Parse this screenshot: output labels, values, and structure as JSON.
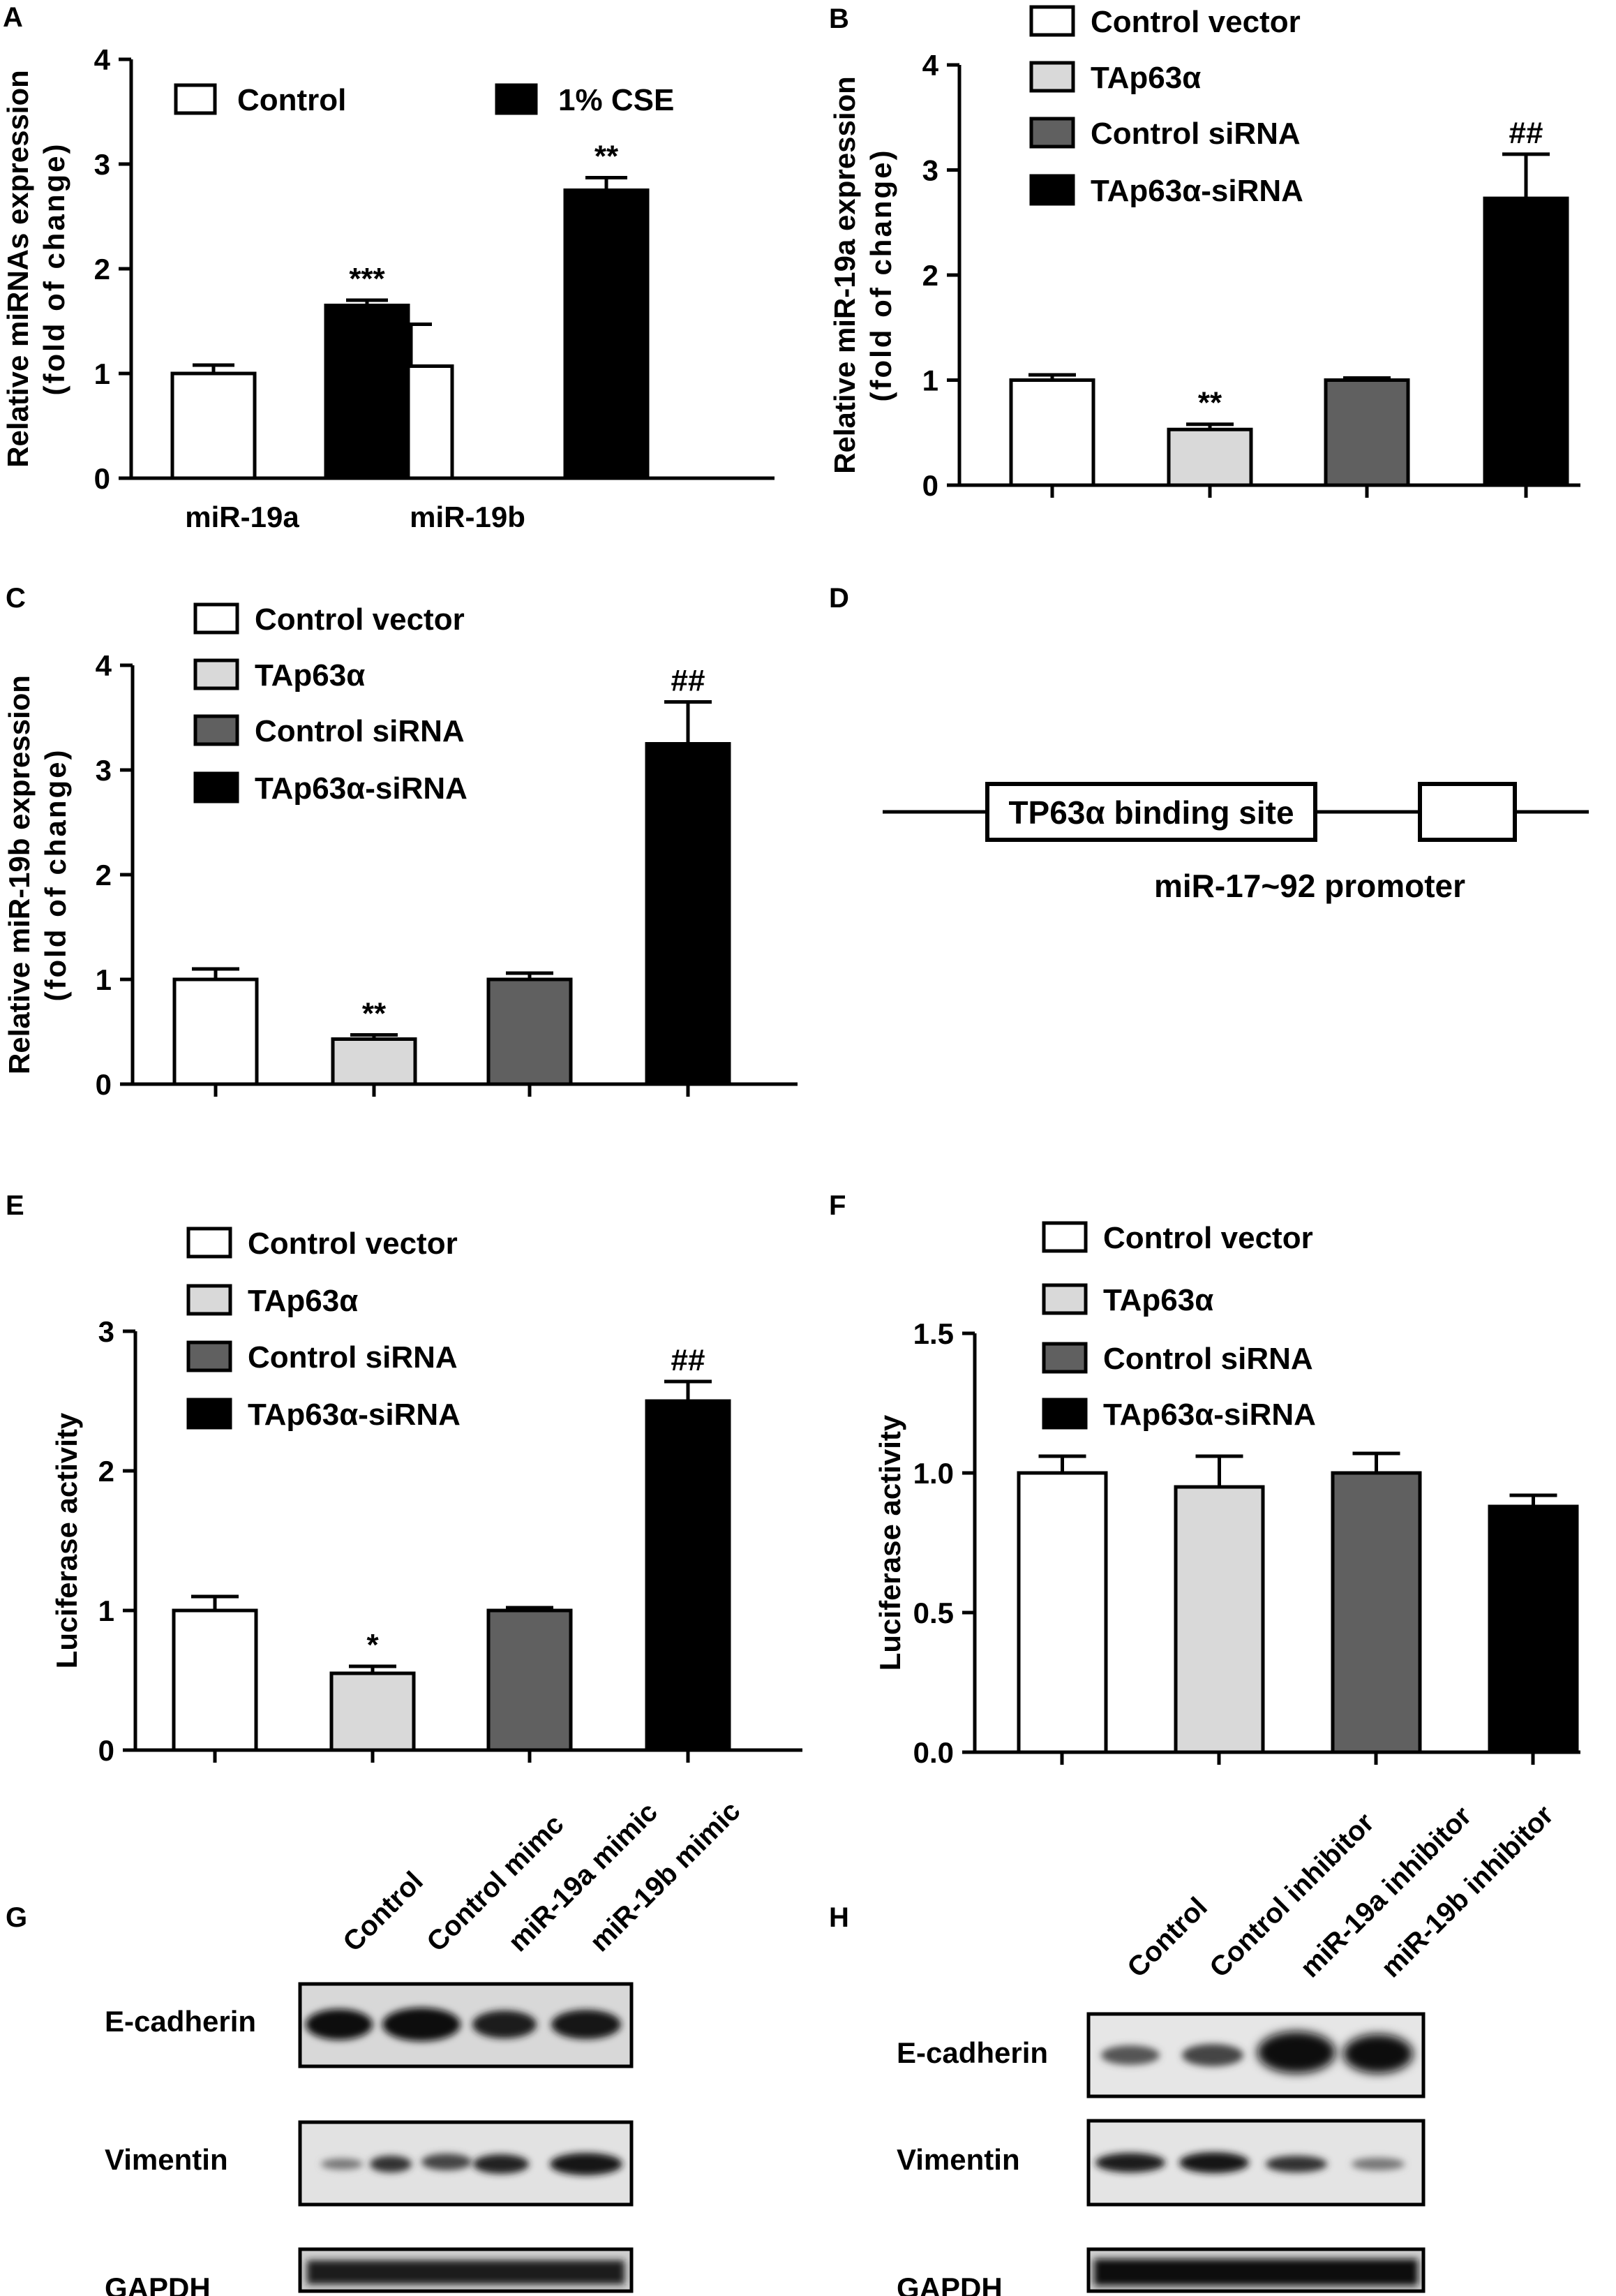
{
  "chart_data": [
    {
      "panel": "A",
      "type": "bar",
      "categories": [
        "miR-19a",
        "miR-19b"
      ],
      "series": [
        {
          "name": "Control",
          "color": "#ffffff",
          "values": [
            1.0,
            1.07
          ],
          "errors": [
            0.08,
            0.4
          ],
          "labels": [
            "",
            ""
          ]
        },
        {
          "name": "1% CSE",
          "color": "#000000",
          "values": [
            1.65,
            2.75
          ],
          "errors": [
            0.05,
            0.12
          ],
          "labels": [
            "***",
            "**"
          ]
        }
      ],
      "ylabel": "Relative miRNAs expression\n(fold of change)",
      "ylim": [
        0,
        4
      ],
      "yticks": [
        "0",
        "1",
        "2",
        "3",
        "4"
      ],
      "legend": "top"
    },
    {
      "panel": "B",
      "type": "bar",
      "categories": [
        "Control vector",
        "TAp63α",
        "Control siRNA",
        "TAp63α-siRNA"
      ],
      "colors": [
        "#ffffff",
        "#d9d9d9",
        "#606060",
        "#000000"
      ],
      "values": [
        1.0,
        0.53,
        1.0,
        2.73
      ],
      "errors": [
        0.05,
        0.05,
        0.02,
        0.42
      ],
      "labels": [
        "",
        "**",
        "",
        "##"
      ],
      "ylabel": "Relative miR-19a expression\n(fold of change)",
      "ylim": [
        0,
        4
      ],
      "yticks": [
        "0",
        "1",
        "2",
        "3",
        "4"
      ],
      "legend": "top-right"
    },
    {
      "panel": "C",
      "type": "bar",
      "categories": [
        "Control vector",
        "TAp63α",
        "Control siRNA",
        "TAp63α-siRNA"
      ],
      "colors": [
        "#ffffff",
        "#d9d9d9",
        "#606060",
        "#000000"
      ],
      "values": [
        1.0,
        0.43,
        1.0,
        3.25
      ],
      "errors": [
        0.1,
        0.04,
        0.06,
        0.4
      ],
      "labels": [
        "",
        "**",
        "",
        "##"
      ],
      "ylabel": "Relative miR-19b expression\n(fold of change)",
      "ylim": [
        0,
        4
      ],
      "yticks": [
        "0",
        "1",
        "2",
        "3",
        "4"
      ],
      "legend": "top"
    },
    {
      "panel": "E",
      "type": "bar",
      "categories": [
        "Control vector",
        "TAp63α",
        "Control siRNA",
        "TAp63α-siRNA"
      ],
      "colors": [
        "#ffffff",
        "#d9d9d9",
        "#606060",
        "#000000"
      ],
      "values": [
        1.0,
        0.55,
        1.0,
        2.5
      ],
      "errors": [
        0.1,
        0.05,
        0.02,
        0.14
      ],
      "labels": [
        "",
        "*",
        "",
        "##"
      ],
      "ylabel": "Luciferase activity",
      "ylim": [
        0,
        3
      ],
      "yticks": [
        "0",
        "1",
        "2",
        "3"
      ],
      "legend": "top"
    },
    {
      "panel": "F",
      "type": "bar",
      "categories": [
        "Control vector",
        "TAp63α",
        "Control siRNA",
        "TAp63α-siRNA"
      ],
      "colors": [
        "#ffffff",
        "#d9d9d9",
        "#606060",
        "#000000"
      ],
      "values": [
        1.0,
        0.95,
        1.0,
        0.88
      ],
      "errors": [
        0.06,
        0.11,
        0.07,
        0.04
      ],
      "labels": [
        "",
        "",
        "",
        ""
      ],
      "ylabel": "Luciferase activity",
      "ylim": [
        0,
        1.5
      ],
      "yticks": [
        "0.0",
        "0.5",
        "1.0",
        "1.5"
      ],
      "legend": "top"
    }
  ],
  "panels": {
    "A": "A",
    "B": "B",
    "C": "C",
    "D": "D",
    "E": "E",
    "F": "F",
    "G": "G",
    "H": "H"
  },
  "diagram": {
    "binding_site": "TP63α binding site",
    "promoter": "miR-17~92 promoter"
  },
  "blot_g": {
    "lanes": [
      "Control",
      "Control mimc",
      "miR-19a mimic",
      "miR-19b mimic"
    ],
    "rows": [
      "E-cadherin",
      "Vimentin",
      "GAPDH"
    ]
  },
  "blot_h": {
    "lanes": [
      "Control",
      "Control inhibitor",
      "miR-19a inhibitor",
      "miR-19b inhibitor"
    ],
    "rows": [
      "E-cadherin",
      "Vimentin",
      "GAPDH"
    ]
  }
}
